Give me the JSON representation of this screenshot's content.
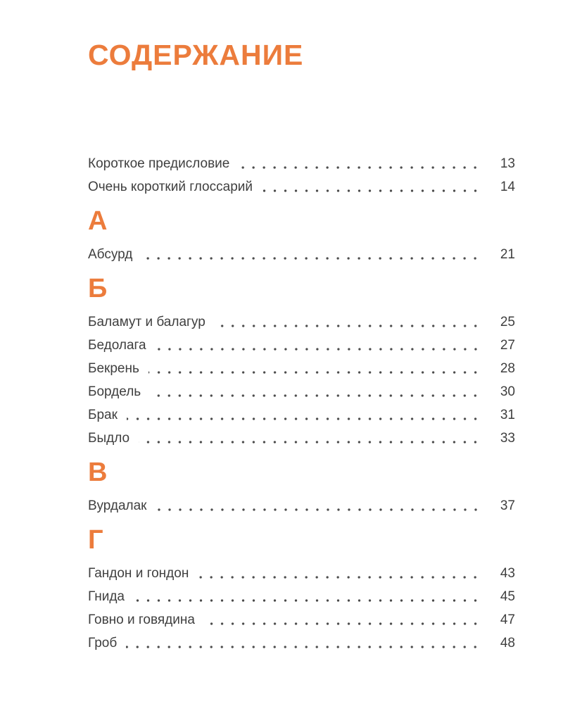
{
  "page": {
    "title": "СОДЕРЖАНИЕ",
    "accent_color": "#EC7C3C",
    "text_color": "#3F3F3F",
    "dot_color": "#4C4C4C",
    "background_color": "#FFFFFF"
  },
  "toc": {
    "front": [
      {
        "label": "Короткое предисловие",
        "page": "13"
      },
      {
        "label": "Очень короткий глоссарий",
        "page": "14"
      }
    ],
    "sections": [
      {
        "letter": "А",
        "entries": [
          {
            "label": "Абсурд",
            "page": "21"
          }
        ]
      },
      {
        "letter": "Б",
        "entries": [
          {
            "label": "Баламут и балагур",
            "page": "25"
          },
          {
            "label": "Бедолага",
            "page": "27"
          },
          {
            "label": "Бекрень",
            "page": "28"
          },
          {
            "label": "Бордель",
            "page": "30"
          },
          {
            "label": "Брак",
            "page": "31"
          },
          {
            "label": "Быдло",
            "page": "33"
          }
        ]
      },
      {
        "letter": "В",
        "entries": [
          {
            "label": "Вурдалак",
            "page": "37"
          }
        ]
      },
      {
        "letter": "Г",
        "entries": [
          {
            "label": "Гандон и гондон",
            "page": "43"
          },
          {
            "label": "Гнида",
            "page": "45"
          },
          {
            "label": "Говно и говядина",
            "page": "47"
          },
          {
            "label": "Гроб",
            "page": "48"
          }
        ]
      }
    ]
  }
}
